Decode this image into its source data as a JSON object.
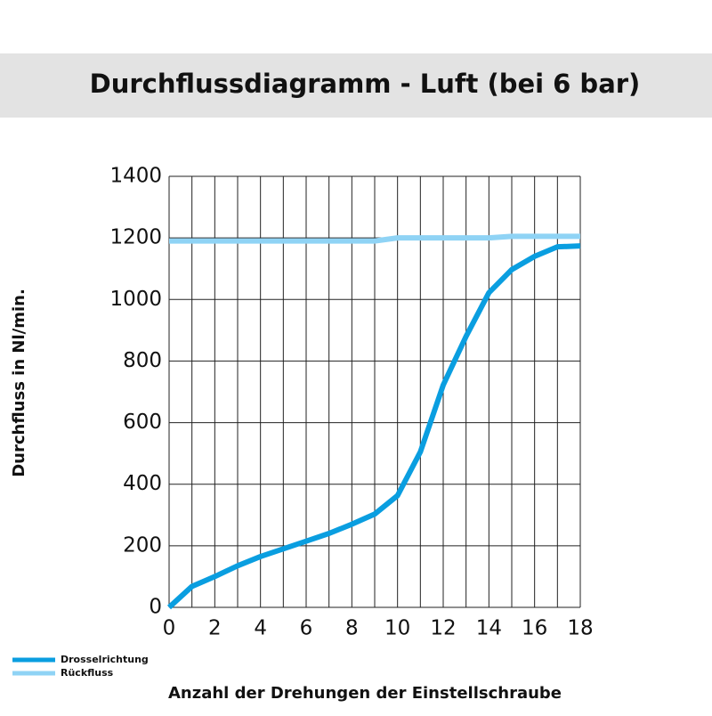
{
  "chart_data": {
    "type": "line",
    "title": "Durchflussdiagramm - Luft (bei 6 bar)",
    "x_label": "Anzahl der Drehungen der Einstellschraube",
    "y_label": "Durchfluss in Nl/min.",
    "x": [
      0,
      1,
      2,
      3,
      4,
      5,
      6,
      7,
      8,
      9,
      10,
      11,
      12,
      13,
      14,
      15,
      16,
      17,
      18
    ],
    "series": [
      {
        "name": "Drosselrichtung",
        "color": "#0a9ee0",
        "values": [
          0,
          68,
          100,
          135,
          165,
          190,
          215,
          240,
          270,
          303,
          363,
          505,
          722,
          880,
          1022,
          1097,
          1140,
          1171,
          1174
        ]
      },
      {
        "name": "Rückfluss",
        "color": "#8fd3f5",
        "values": [
          1190,
          1190,
          1190,
          1190,
          1190,
          1190,
          1190,
          1190,
          1190,
          1190,
          1200,
          1200,
          1200,
          1200,
          1200,
          1205,
          1205,
          1205,
          1205
        ]
      }
    ],
    "xlim": [
      0,
      18
    ],
    "ylim": [
      0,
      1400
    ],
    "xticks": [
      0,
      2,
      4,
      6,
      8,
      10,
      12,
      14,
      16,
      18
    ],
    "xgrid": [
      0,
      1,
      2,
      3,
      4,
      5,
      6,
      7,
      8,
      9,
      10,
      11,
      12,
      13,
      14,
      15,
      16,
      17,
      18
    ],
    "yticks": [
      0,
      200,
      400,
      600,
      800,
      1000,
      1200,
      1400
    ],
    "grid": true,
    "legend": "bottom-left"
  }
}
